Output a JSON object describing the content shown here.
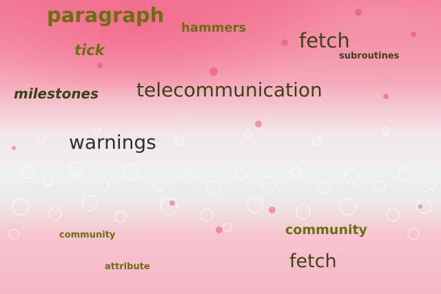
{
  "words": {
    "paragraph": "paragraph",
    "hammers": "hammers",
    "fetch_top": "fetch",
    "subroutines": "subroutines",
    "tick": "tick",
    "milestones": "milestones",
    "telecommunication": "telecommunication",
    "warnings": "warnings",
    "community_left": "community",
    "community_right": "community",
    "attribute": "attribute",
    "fetch_bottom": "fetch"
  },
  "colors": {
    "olive_text": "#6b6f12",
    "dark_text": "#3b4217",
    "pink_background": "#f27d98",
    "foam_white": "#eef0f1"
  }
}
